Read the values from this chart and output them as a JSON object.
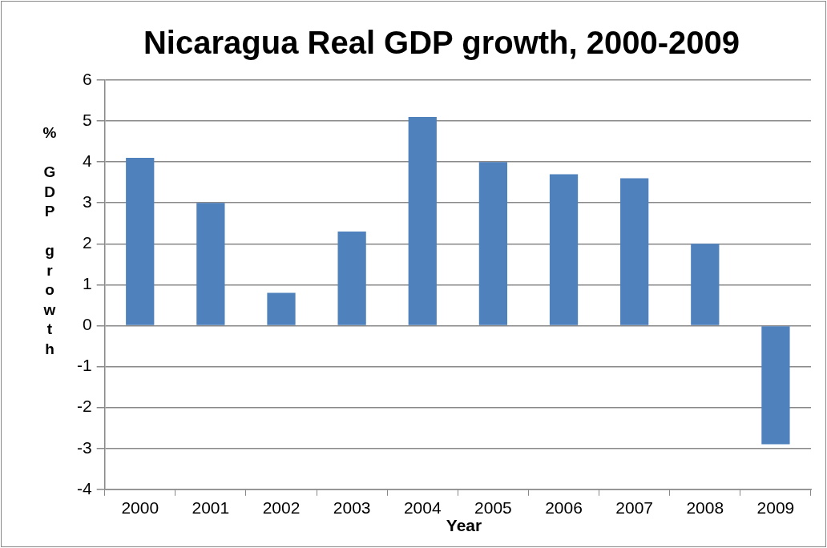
{
  "chart_data": {
    "type": "bar",
    "title": "Nicaragua Real GDP growth, 2000-2009",
    "xlabel": "Year",
    "ylabel": "% GDP growth",
    "categories": [
      "2000",
      "2001",
      "2002",
      "2003",
      "2004",
      "2005",
      "2006",
      "2007",
      "2008",
      "2009"
    ],
    "values": [
      4.1,
      3.0,
      0.8,
      2.3,
      5.1,
      4.0,
      3.7,
      3.6,
      2.0,
      -2.9
    ],
    "color": "#4f81bd",
    "ylim": [
      -4,
      6
    ],
    "yticks": [
      -4,
      -3,
      -2,
      -1,
      0,
      1,
      2,
      3,
      4,
      5,
      6
    ],
    "grid": "y",
    "legend": false
  }
}
